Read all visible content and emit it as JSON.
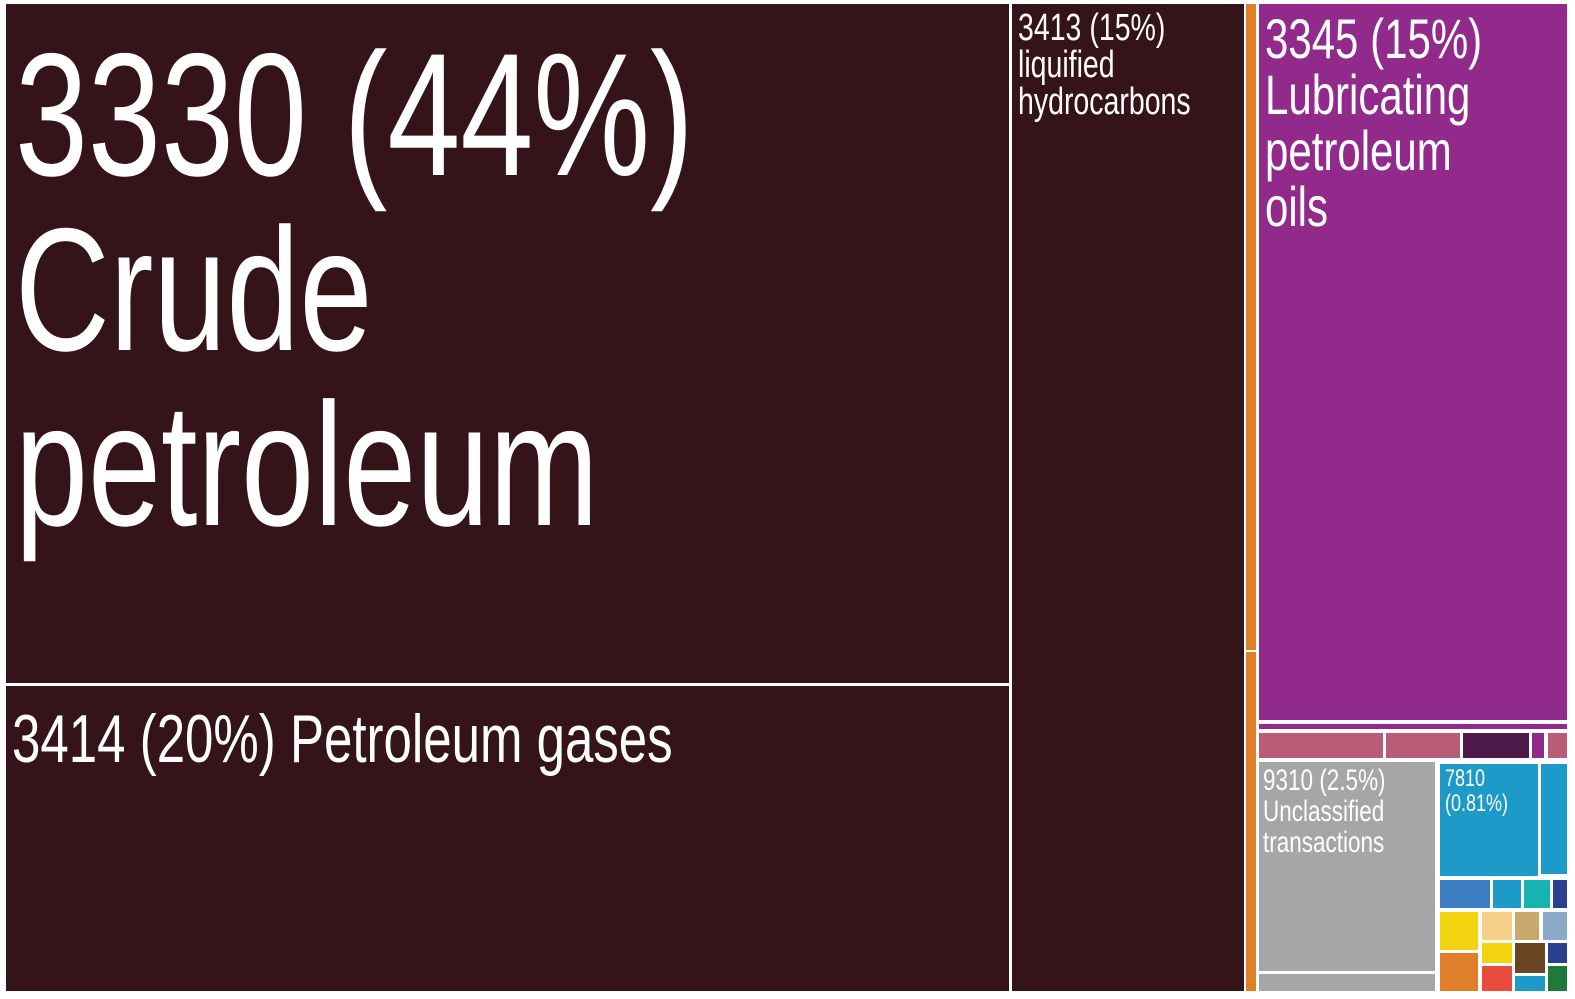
{
  "chart_data": {
    "type": "treemap",
    "items": [
      {
        "code": "3330",
        "value": 44,
        "value_label": "(44%)",
        "name": "Crude petroleum",
        "color": "#341418"
      },
      {
        "code": "3414",
        "value": 20,
        "value_label": "(20%)",
        "name": "Petroleum gases",
        "color": "#341418"
      },
      {
        "code": "3413",
        "value": 15,
        "value_label": "(15%)",
        "name": "liquified hydrocarbons",
        "color": "#341418"
      },
      {
        "code": "3345",
        "value": 15,
        "value_label": "(15%)",
        "name": "Lubricating petroleum oils",
        "color": "#922a8c"
      },
      {
        "code": "9310",
        "value": 2.5,
        "value_label": "(2.5%)",
        "name": "Unclassified transactions",
        "color": "#a6a6a6"
      },
      {
        "code": "7810",
        "value": 0.81,
        "value_label": "(0.81%)",
        "color": "#1e9ac8"
      }
    ]
  }
}
